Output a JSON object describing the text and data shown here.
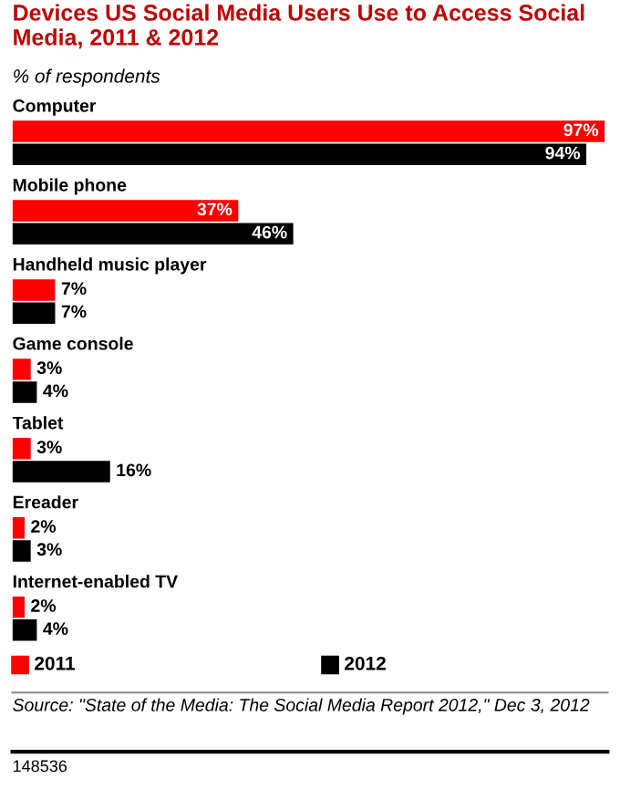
{
  "chart_data": {
    "type": "bar",
    "orientation": "horizontal",
    "title": "Devices US Social Media Users Use to Access Social Media, 2011 & 2012",
    "subtitle": "% of respondents",
    "categories": [
      "Computer",
      "Mobile phone",
      "Handheld music player",
      "Game console",
      "Tablet",
      "Ereader",
      "Internet-enabled TV"
    ],
    "series": [
      {
        "name": "2011",
        "color": "#ff0000",
        "values": [
          97,
          37,
          7,
          3,
          3,
          2,
          2
        ],
        "value_labels": [
          "97%",
          "37%",
          "7%",
          "3%",
          "3%",
          "2%",
          "2%"
        ]
      },
      {
        "name": "2012",
        "color": "#000000",
        "values": [
          94,
          46,
          7,
          4,
          16,
          3,
          4
        ],
        "value_labels": [
          "94%",
          "46%",
          "7%",
          "4%",
          "16%",
          "3%",
          "4%"
        ]
      }
    ],
    "legend": "bottom",
    "annotations": [
      "Source: \"State of the Media: The Social Media Report 2012,\" Dec 3, 2012",
      "148536"
    ]
  }
}
